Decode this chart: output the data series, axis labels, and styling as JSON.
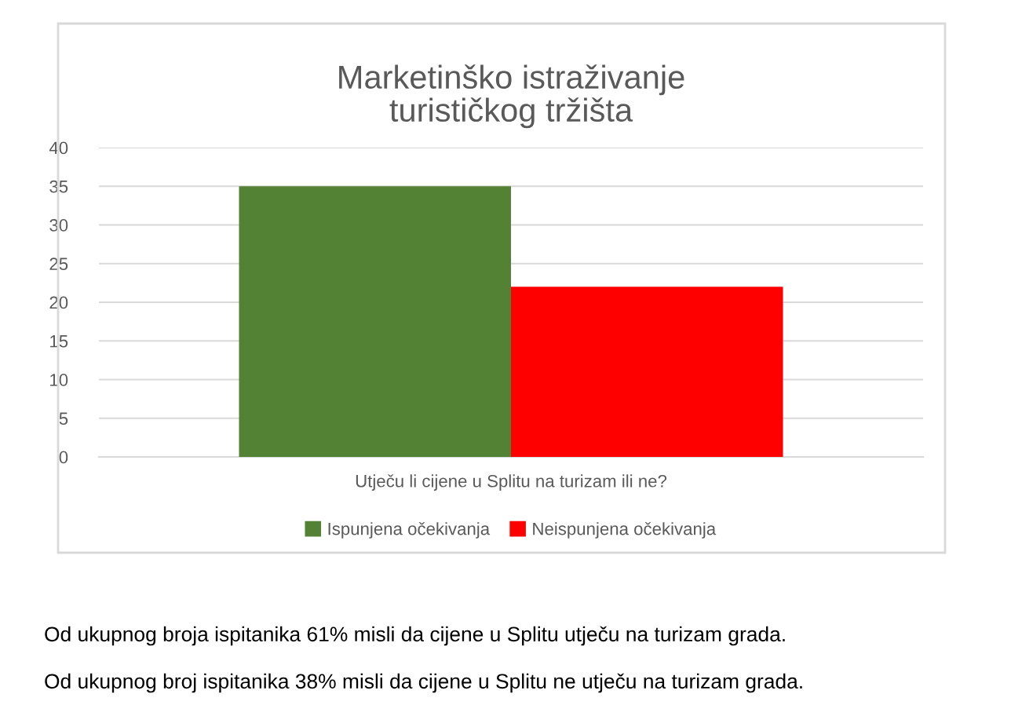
{
  "chart_data": {
    "type": "bar",
    "title": "Marketinško istraživanje\nturističkog tržišta",
    "categories": [
      "Utječu li cijene u Splitu na turizam ili ne?"
    ],
    "series": [
      {
        "name": "Ispunjena očekivanja",
        "color": "#548235",
        "values": [
          35
        ]
      },
      {
        "name": "Neispunjena očekivanja",
        "color": "#ff0000",
        "values": [
          22
        ]
      }
    ],
    "ylim": [
      0,
      40
    ],
    "yticks": [
      0,
      5,
      10,
      15,
      20,
      25,
      30,
      35,
      40
    ],
    "grid": "y",
    "legend": "bottom",
    "annotations": [
      "Od ukupnog broja ispitanika 61% misli da cijene u Splitu utječu na turizam grada.",
      "Od ukupnog broj ispitanika 38% misli da cijene u Splitu ne utječu na turizam grada."
    ]
  }
}
